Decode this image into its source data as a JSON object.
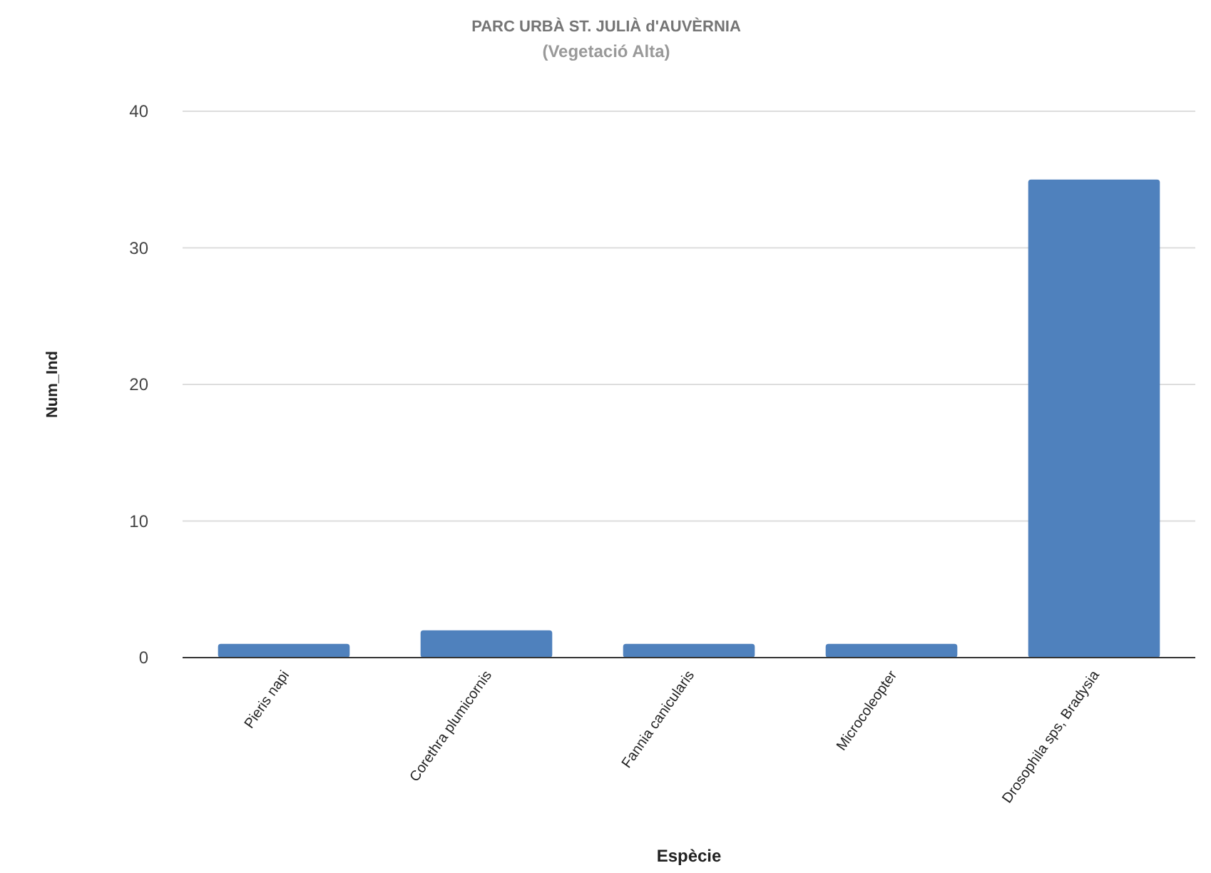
{
  "chart_data": {
    "type": "bar",
    "title": "PARC URBÀ ST. JULIÀ d'AUVÈRNIA",
    "subtitle": "(Vegetació Alta)",
    "xlabel": "Espècie",
    "ylabel": "Num_Ind",
    "categories": [
      "Pieris napi",
      "Corethra plumicornis",
      "Fannia canicularis",
      "Microcoleopter",
      "Drosophila sps, Bradysia"
    ],
    "values": [
      1,
      2,
      1,
      1,
      35
    ],
    "color": "#4f81bd",
    "ylim": [
      0,
      40
    ],
    "yticks": [
      0,
      10,
      20,
      30,
      40
    ],
    "grid": "y"
  }
}
